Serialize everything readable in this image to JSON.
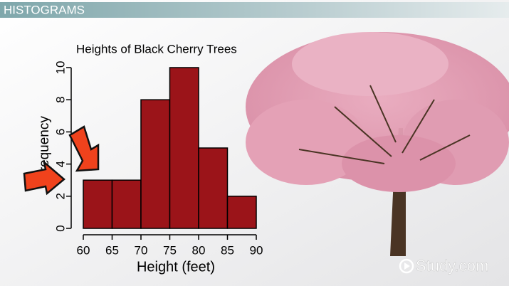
{
  "header": {
    "title": "HISTOGRAMS"
  },
  "chart_data": {
    "type": "histogram",
    "title": "Heights of Black Cherry Trees",
    "x_label": "Height (feet)",
    "y_label": "Frequency",
    "bins": [
      60,
      65,
      70,
      75,
      80,
      85,
      90
    ],
    "values": [
      3,
      3,
      8,
      10,
      5,
      2
    ],
    "color": "#9b1419",
    "xlim": [
      60,
      90
    ],
    "xticks": [
      60,
      65,
      70,
      75,
      80,
      85,
      90
    ],
    "ylim": [
      0,
      10
    ],
    "yticks": [
      0,
      2,
      4,
      6,
      8,
      10
    ]
  },
  "watermark": "Study.com"
}
